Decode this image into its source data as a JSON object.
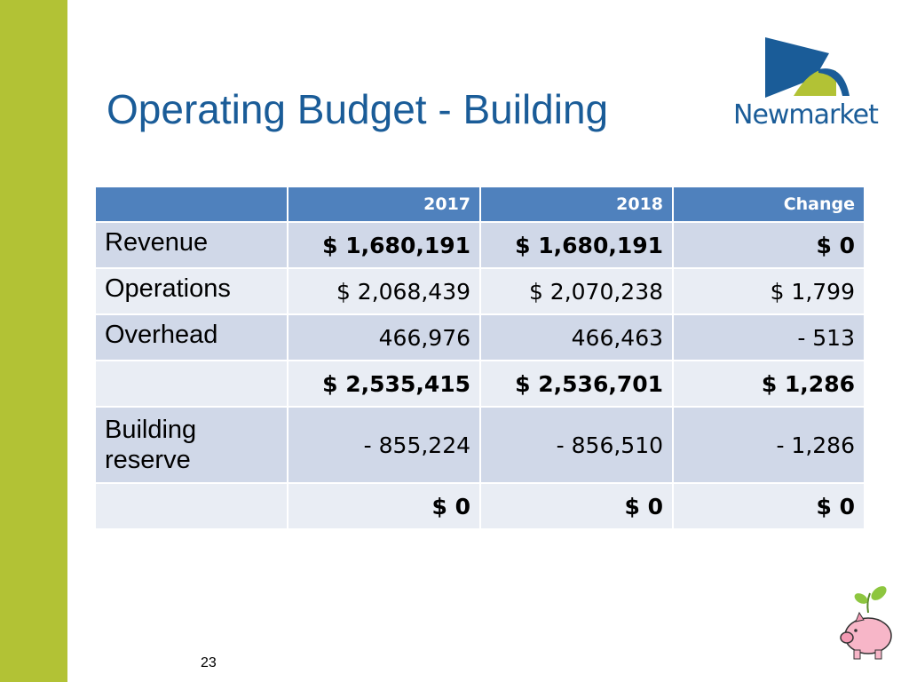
{
  "header": {
    "title": "Operating Budget - Building",
    "logo_text": "Newmarket"
  },
  "table": {
    "columns": [
      null,
      "2017",
      "2018",
      "Change"
    ],
    "rows": [
      [
        "Revenue",
        "$ 1,680,191",
        "$ 1,680,191",
        "$ 0"
      ],
      [
        "Operations",
        "$ 2,068,439",
        "$ 2,070,238",
        "$ 1,799"
      ],
      [
        "Overhead",
        "466,976",
        "466,463",
        "- 513"
      ],
      [
        null,
        "$ 2,535,415",
        "$ 2,536,701",
        "$ 1,286"
      ],
      [
        "Building reserve",
        "- 855,224",
        "- 856,510",
        "- 1,286"
      ],
      [
        null,
        "$ 0",
        "$ 0",
        "$ 0"
      ]
    ]
  },
  "footer": {
    "page_number": "23"
  }
}
